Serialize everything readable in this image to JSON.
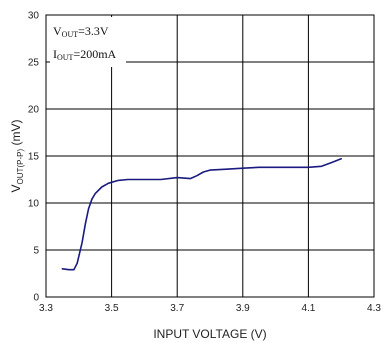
{
  "chart_data": {
    "type": "line",
    "xlabel": "INPUT VOLTAGE (V)",
    "ylabel": {
      "main": "V",
      "sub": "OUT(P-P)",
      "unit": " (mV)"
    },
    "xlim": [
      3.3,
      4.3
    ],
    "ylim": [
      0,
      30
    ],
    "xticks": [
      "3.3",
      "3.5",
      "3.7",
      "3.9",
      "4.1",
      "4.3"
    ],
    "yticks": [
      "0",
      "5",
      "10",
      "15",
      "20",
      "25",
      "30"
    ],
    "grid": true,
    "annotations": [
      {
        "main": "V",
        "sub": "OUT",
        "rest": "=3.3V"
      },
      {
        "main": "I",
        "sub": "OUT",
        "rest": "=200mA"
      }
    ],
    "series": [
      {
        "color": "#1a1a80",
        "x": [
          3.35,
          3.37,
          3.385,
          3.395,
          3.41,
          3.42,
          3.43,
          3.44,
          3.45,
          3.47,
          3.49,
          3.52,
          3.55,
          3.6,
          3.65,
          3.7,
          3.74,
          3.76,
          3.78,
          3.8,
          3.85,
          3.9,
          3.95,
          4.0,
          4.05,
          4.1,
          4.14,
          4.17,
          4.2
        ],
        "y": [
          3.0,
          2.9,
          2.9,
          3.6,
          5.8,
          7.8,
          9.4,
          10.4,
          11.0,
          11.7,
          12.1,
          12.4,
          12.5,
          12.5,
          12.5,
          12.7,
          12.6,
          12.9,
          13.3,
          13.5,
          13.6,
          13.7,
          13.8,
          13.8,
          13.8,
          13.8,
          13.9,
          14.3,
          14.7
        ]
      }
    ]
  }
}
